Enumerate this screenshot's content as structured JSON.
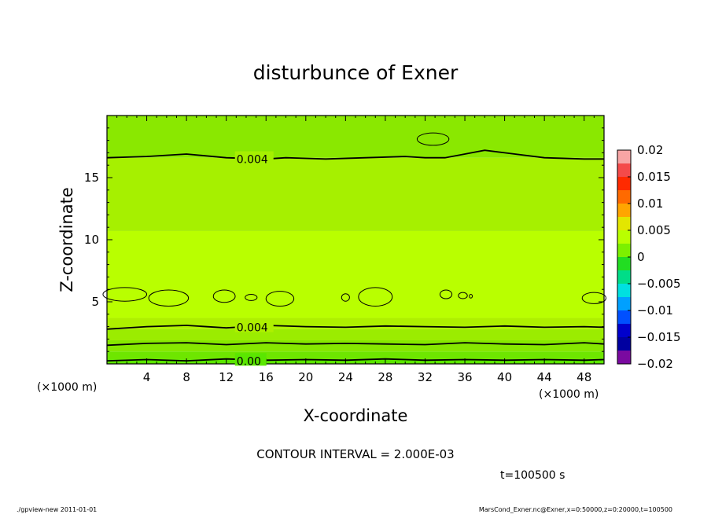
{
  "chart_data": {
    "type": "contour",
    "title": "disturbunce of Exner",
    "xlabel": "X-coordinate",
    "ylabel": "Z-coordinate",
    "x_unit": "(×1000 m)",
    "y_unit": "(×1000 m)",
    "xlim": [
      0,
      50
    ],
    "ylim": [
      0,
      20
    ],
    "x_ticks": [
      "4",
      "8",
      "12",
      "16",
      "20",
      "24",
      "28",
      "32",
      "36",
      "40",
      "44",
      "48"
    ],
    "y_ticks": [
      "5",
      "10",
      "15"
    ],
    "contour_labels": [
      "0.004",
      "0.004",
      "0.00"
    ],
    "contour_interval_text": "CONTOUR INTERVAL = 2.000E-03",
    "time_text": "t=100500  s",
    "colorbar": {
      "ticks": [
        "0.02",
        "0.015",
        "0.01",
        "0.005",
        "0",
        "−0.005",
        "−0.01",
        "−0.015",
        "−0.02"
      ],
      "colors": [
        "#f7a5a5",
        "#f44a4a",
        "#ff2a00",
        "#ff6a00",
        "#ffa500",
        "#e3e600",
        "#b9ff00",
        "#7cf000",
        "#22dd22",
        "#00dd88",
        "#00e0e0",
        "#00a0ff",
        "#0050ff",
        "#0000cc",
        "#0000a0",
        "#7a0aa0"
      ]
    },
    "field_bands": [
      {
        "z_from": 0,
        "z_to": 0.35,
        "color": "#5ae600"
      },
      {
        "z_from": 0.35,
        "z_to": 1.0,
        "color": "#6ee600"
      },
      {
        "z_from": 1.0,
        "z_to": 1.9,
        "color": "#86e800"
      },
      {
        "z_from": 1.9,
        "z_to": 2.8,
        "color": "#9bec00"
      },
      {
        "z_from": 2.8,
        "z_to": 3.7,
        "color": "#aef000"
      },
      {
        "z_from": 3.7,
        "z_to": 10.7,
        "color": "#b9ff00"
      },
      {
        "z_from": 10.7,
        "z_to": 16.6,
        "color": "#a6f000"
      },
      {
        "z_from": 16.6,
        "z_to": 20,
        "color": "#8ae800"
      }
    ],
    "contours": [
      {
        "level": "0.004",
        "points": [
          [
            0,
            16.6
          ],
          [
            4,
            16.7
          ],
          [
            8,
            16.9
          ],
          [
            12,
            16.6
          ],
          [
            16,
            16.5
          ],
          [
            18,
            16.6
          ],
          [
            22,
            16.5
          ],
          [
            26,
            16.6
          ],
          [
            30,
            16.7
          ],
          [
            32,
            16.6
          ],
          [
            34,
            16.6
          ],
          [
            36,
            16.9
          ],
          [
            38,
            17.2
          ],
          [
            40,
            17.0
          ],
          [
            44,
            16.6
          ],
          [
            48,
            16.5
          ],
          [
            50,
            16.5
          ]
        ]
      },
      {
        "level": "0.004",
        "points": [
          [
            0,
            2.8
          ],
          [
            4,
            3.0
          ],
          [
            8,
            3.1
          ],
          [
            12,
            2.9
          ],
          [
            16,
            3.1
          ],
          [
            20,
            3.0
          ],
          [
            24,
            2.95
          ],
          [
            28,
            3.05
          ],
          [
            32,
            3.0
          ],
          [
            36,
            2.95
          ],
          [
            40,
            3.05
          ],
          [
            44,
            2.95
          ],
          [
            48,
            3.0
          ],
          [
            50,
            2.95
          ]
        ]
      },
      {
        "level": "",
        "points": [
          [
            0,
            1.5
          ],
          [
            4,
            1.65
          ],
          [
            8,
            1.7
          ],
          [
            12,
            1.55
          ],
          [
            16,
            1.7
          ],
          [
            20,
            1.6
          ],
          [
            24,
            1.65
          ],
          [
            28,
            1.6
          ],
          [
            32,
            1.55
          ],
          [
            36,
            1.7
          ],
          [
            40,
            1.6
          ],
          [
            44,
            1.55
          ],
          [
            48,
            1.7
          ],
          [
            50,
            1.6
          ]
        ]
      },
      {
        "level": "0.00",
        "points": [
          [
            0,
            0.25
          ],
          [
            4,
            0.35
          ],
          [
            8,
            0.25
          ],
          [
            12,
            0.4
          ],
          [
            16,
            0.3
          ],
          [
            20,
            0.35
          ],
          [
            24,
            0.3
          ],
          [
            28,
            0.4
          ],
          [
            32,
            0.3
          ],
          [
            36,
            0.35
          ],
          [
            40,
            0.3
          ],
          [
            44,
            0.35
          ],
          [
            48,
            0.3
          ],
          [
            50,
            0.35
          ]
        ]
      }
    ],
    "closed_contours": [
      {
        "cx": 32.8,
        "cz": 18.1,
        "rx": 1.6,
        "rz": 0.5
      },
      {
        "cx": 6.2,
        "cz": 5.3,
        "rx": 2.0,
        "rz": 0.65
      },
      {
        "cx": 11.8,
        "cz": 5.45,
        "rx": 1.1,
        "rz": 0.5
      },
      {
        "cx": 14.5,
        "cz": 5.35,
        "rx": 0.6,
        "rz": 0.25
      },
      {
        "cx": 17.4,
        "cz": 5.25,
        "rx": 1.4,
        "rz": 0.6
      },
      {
        "cx": 24.0,
        "cz": 5.35,
        "rx": 0.4,
        "rz": 0.3
      },
      {
        "cx": 27.0,
        "cz": 5.4,
        "rx": 1.7,
        "rz": 0.75
      },
      {
        "cx": 34.1,
        "cz": 5.6,
        "rx": 0.6,
        "rz": 0.35
      },
      {
        "cx": 35.8,
        "cz": 5.5,
        "rx": 0.45,
        "rz": 0.25
      },
      {
        "cx": 36.6,
        "cz": 5.45,
        "rx": 0.15,
        "rz": 0.15
      },
      {
        "cx": 49.0,
        "cz": 5.3,
        "rx": 1.2,
        "rz": 0.45
      },
      {
        "cx": 1.8,
        "cz": 5.6,
        "rx": 2.2,
        "rz": 0.55
      }
    ]
  },
  "footer": {
    "left": "./gpview-new   2011-01-01",
    "right": "MarsCond_Exner.nc@Exner,x=0:50000,z=0:20000,t=100500"
  }
}
